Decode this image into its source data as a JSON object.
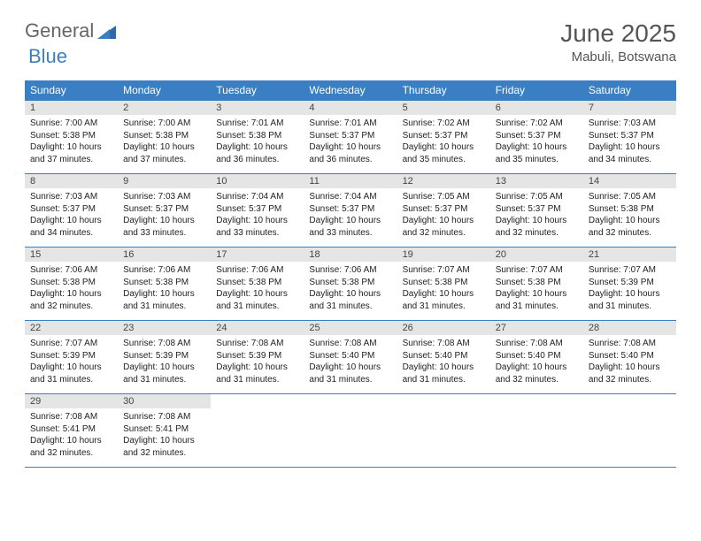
{
  "logo": {
    "general": "General",
    "blue": "Blue"
  },
  "title": {
    "month": "June 2025",
    "location": "Mabuli, Botswana"
  },
  "colors": {
    "header_bg": "#3a7fc4",
    "header_text": "#ffffff",
    "daynum_bg": "#e5e5e5",
    "border": "#3a7fc4",
    "text": "#222222",
    "title_text": "#555555"
  },
  "daynames": [
    "Sunday",
    "Monday",
    "Tuesday",
    "Wednesday",
    "Thursday",
    "Friday",
    "Saturday"
  ],
  "weeks": [
    [
      {
        "n": "1",
        "sr": "7:00 AM",
        "ss": "5:38 PM",
        "dl": "10 hours and 37 minutes."
      },
      {
        "n": "2",
        "sr": "7:00 AM",
        "ss": "5:38 PM",
        "dl": "10 hours and 37 minutes."
      },
      {
        "n": "3",
        "sr": "7:01 AM",
        "ss": "5:38 PM",
        "dl": "10 hours and 36 minutes."
      },
      {
        "n": "4",
        "sr": "7:01 AM",
        "ss": "5:37 PM",
        "dl": "10 hours and 36 minutes."
      },
      {
        "n": "5",
        "sr": "7:02 AM",
        "ss": "5:37 PM",
        "dl": "10 hours and 35 minutes."
      },
      {
        "n": "6",
        "sr": "7:02 AM",
        "ss": "5:37 PM",
        "dl": "10 hours and 35 minutes."
      },
      {
        "n": "7",
        "sr": "7:03 AM",
        "ss": "5:37 PM",
        "dl": "10 hours and 34 minutes."
      }
    ],
    [
      {
        "n": "8",
        "sr": "7:03 AM",
        "ss": "5:37 PM",
        "dl": "10 hours and 34 minutes."
      },
      {
        "n": "9",
        "sr": "7:03 AM",
        "ss": "5:37 PM",
        "dl": "10 hours and 33 minutes."
      },
      {
        "n": "10",
        "sr": "7:04 AM",
        "ss": "5:37 PM",
        "dl": "10 hours and 33 minutes."
      },
      {
        "n": "11",
        "sr": "7:04 AM",
        "ss": "5:37 PM",
        "dl": "10 hours and 33 minutes."
      },
      {
        "n": "12",
        "sr": "7:05 AM",
        "ss": "5:37 PM",
        "dl": "10 hours and 32 minutes."
      },
      {
        "n": "13",
        "sr": "7:05 AM",
        "ss": "5:37 PM",
        "dl": "10 hours and 32 minutes."
      },
      {
        "n": "14",
        "sr": "7:05 AM",
        "ss": "5:38 PM",
        "dl": "10 hours and 32 minutes."
      }
    ],
    [
      {
        "n": "15",
        "sr": "7:06 AM",
        "ss": "5:38 PM",
        "dl": "10 hours and 32 minutes."
      },
      {
        "n": "16",
        "sr": "7:06 AM",
        "ss": "5:38 PM",
        "dl": "10 hours and 31 minutes."
      },
      {
        "n": "17",
        "sr": "7:06 AM",
        "ss": "5:38 PM",
        "dl": "10 hours and 31 minutes."
      },
      {
        "n": "18",
        "sr": "7:06 AM",
        "ss": "5:38 PM",
        "dl": "10 hours and 31 minutes."
      },
      {
        "n": "19",
        "sr": "7:07 AM",
        "ss": "5:38 PM",
        "dl": "10 hours and 31 minutes."
      },
      {
        "n": "20",
        "sr": "7:07 AM",
        "ss": "5:38 PM",
        "dl": "10 hours and 31 minutes."
      },
      {
        "n": "21",
        "sr": "7:07 AM",
        "ss": "5:39 PM",
        "dl": "10 hours and 31 minutes."
      }
    ],
    [
      {
        "n": "22",
        "sr": "7:07 AM",
        "ss": "5:39 PM",
        "dl": "10 hours and 31 minutes."
      },
      {
        "n": "23",
        "sr": "7:08 AM",
        "ss": "5:39 PM",
        "dl": "10 hours and 31 minutes."
      },
      {
        "n": "24",
        "sr": "7:08 AM",
        "ss": "5:39 PM",
        "dl": "10 hours and 31 minutes."
      },
      {
        "n": "25",
        "sr": "7:08 AM",
        "ss": "5:40 PM",
        "dl": "10 hours and 31 minutes."
      },
      {
        "n": "26",
        "sr": "7:08 AM",
        "ss": "5:40 PM",
        "dl": "10 hours and 31 minutes."
      },
      {
        "n": "27",
        "sr": "7:08 AM",
        "ss": "5:40 PM",
        "dl": "10 hours and 32 minutes."
      },
      {
        "n": "28",
        "sr": "7:08 AM",
        "ss": "5:40 PM",
        "dl": "10 hours and 32 minutes."
      }
    ],
    [
      {
        "n": "29",
        "sr": "7:08 AM",
        "ss": "5:41 PM",
        "dl": "10 hours and 32 minutes."
      },
      {
        "n": "30",
        "sr": "7:08 AM",
        "ss": "5:41 PM",
        "dl": "10 hours and 32 minutes."
      },
      {
        "empty": true
      },
      {
        "empty": true
      },
      {
        "empty": true
      },
      {
        "empty": true
      },
      {
        "empty": true
      }
    ]
  ],
  "labels": {
    "sunrise": "Sunrise:",
    "sunset": "Sunset:",
    "daylight": "Daylight:"
  }
}
